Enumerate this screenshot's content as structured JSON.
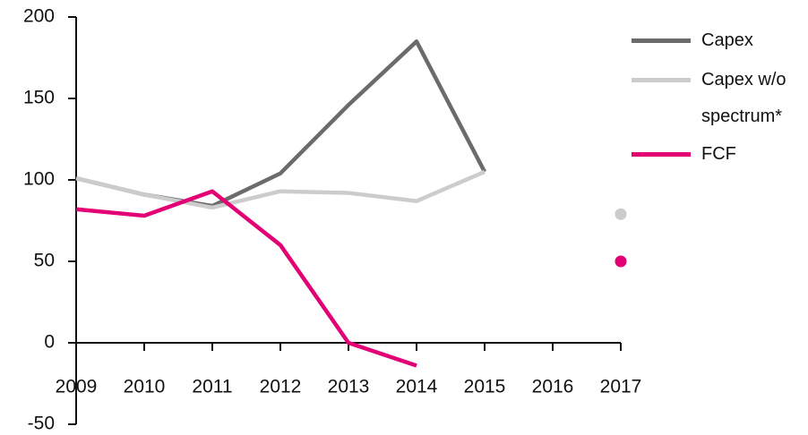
{
  "chart_data": {
    "type": "line",
    "categories": [
      "2009",
      "2010",
      "2011",
      "2012",
      "2013",
      "2014",
      "2015",
      "2016",
      "2017"
    ],
    "series": [
      {
        "name": "Capex",
        "color": "#6b6b6b",
        "values": [
          101,
          91,
          84,
          104,
          146,
          185,
          105,
          null,
          null
        ]
      },
      {
        "name": "Capex w/o spectrum*",
        "color": "#cccccc",
        "values": [
          101,
          91,
          83,
          93,
          92,
          87,
          105,
          null,
          79
        ]
      },
      {
        "name": "FCF",
        "color": "#e20074",
        "values": [
          82,
          78,
          93,
          60,
          0,
          -14,
          null,
          null,
          50
        ]
      }
    ],
    "ylim": [
      -50,
      200
    ],
    "yticks": [
      -50,
      0,
      50,
      100,
      150,
      200
    ],
    "grid": false,
    "legend": "right"
  }
}
